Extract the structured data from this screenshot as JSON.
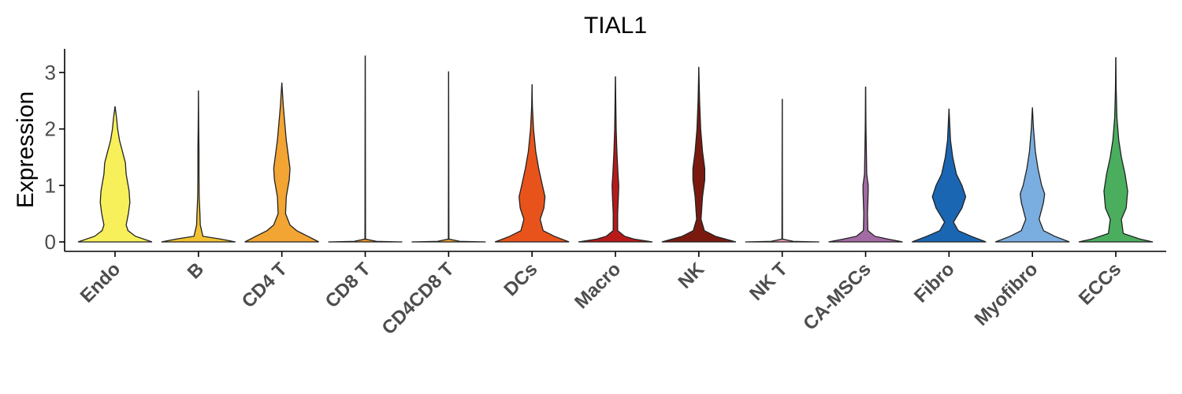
{
  "chart_data": {
    "type": "violin",
    "title": "TIAL1",
    "xlabel": "",
    "ylabel": "Expression",
    "ylim": [
      -0.15,
      3.45
    ],
    "yticks": [
      0,
      1,
      2,
      3
    ],
    "grid": false,
    "legend": "none",
    "categories": [
      "Endo",
      "B",
      "CD4 T",
      "CD8 T",
      "CD4CD8 T",
      "DCs",
      "Macro",
      "NK",
      "NK T",
      "CA-MSCs",
      "Fibro",
      "Myofibro",
      "ECCs"
    ],
    "colors": [
      "#f8f05b",
      "#f2c230",
      "#f2a533",
      "#f39c2d",
      "#f5a33a",
      "#e8531c",
      "#b81a1a",
      "#7a1a0f",
      "#f0a0b0",
      "#a36ba3",
      "#1a66b3",
      "#7aaee0",
      "#4aae5e"
    ],
    "max_values": [
      2.4,
      2.68,
      2.82,
      3.3,
      3.02,
      2.79,
      2.93,
      3.1,
      2.53,
      2.75,
      2.36,
      2.38,
      3.27
    ],
    "profiles": [
      [
        [
          0,
          1.0
        ],
        [
          0.1,
          0.55
        ],
        [
          0.2,
          0.35
        ],
        [
          0.3,
          0.3
        ],
        [
          0.5,
          0.36
        ],
        [
          0.7,
          0.4
        ],
        [
          0.9,
          0.38
        ],
        [
          1.2,
          0.3
        ],
        [
          1.4,
          0.28
        ],
        [
          1.6,
          0.2
        ],
        [
          1.8,
          0.12
        ],
        [
          2.0,
          0.07
        ],
        [
          2.2,
          0.04
        ],
        [
          2.4,
          0.0
        ]
      ],
      [
        [
          0,
          1.0
        ],
        [
          0.05,
          0.6
        ],
        [
          0.1,
          0.12
        ],
        [
          0.3,
          0.05
        ],
        [
          0.5,
          0.04
        ],
        [
          0.8,
          0.02
        ],
        [
          1.2,
          0.015
        ],
        [
          1.6,
          0.015
        ],
        [
          2.0,
          0.008
        ],
        [
          2.68,
          0.0
        ]
      ],
      [
        [
          0,
          1.0
        ],
        [
          0.1,
          0.7
        ],
        [
          0.2,
          0.4
        ],
        [
          0.3,
          0.22
        ],
        [
          0.5,
          0.1
        ],
        [
          0.8,
          0.12
        ],
        [
          1.1,
          0.2
        ],
        [
          1.3,
          0.22
        ],
        [
          1.5,
          0.18
        ],
        [
          1.8,
          0.12
        ],
        [
          2.1,
          0.08
        ],
        [
          2.4,
          0.04
        ],
        [
          2.82,
          0.0
        ]
      ],
      [
        [
          0,
          1.0
        ],
        [
          0.01,
          0.3
        ],
        [
          0.05,
          0.008
        ],
        [
          3.3,
          0.0
        ]
      ],
      [
        [
          0,
          1.0
        ],
        [
          0.01,
          0.3
        ],
        [
          0.05,
          0.008
        ],
        [
          3.02,
          0.0
        ]
      ],
      [
        [
          0,
          1.0
        ],
        [
          0.1,
          0.6
        ],
        [
          0.2,
          0.3
        ],
        [
          0.4,
          0.22
        ],
        [
          0.6,
          0.32
        ],
        [
          0.8,
          0.35
        ],
        [
          1.0,
          0.28
        ],
        [
          1.3,
          0.18
        ],
        [
          1.6,
          0.1
        ],
        [
          2.0,
          0.04
        ],
        [
          2.4,
          0.01
        ],
        [
          2.79,
          0.0
        ]
      ],
      [
        [
          0,
          1.0
        ],
        [
          0.05,
          0.5
        ],
        [
          0.1,
          0.25
        ],
        [
          0.2,
          0.06
        ],
        [
          0.5,
          0.06
        ],
        [
          0.8,
          0.08
        ],
        [
          1.0,
          0.09
        ],
        [
          1.2,
          0.07
        ],
        [
          1.6,
          0.04
        ],
        [
          2.0,
          0.02
        ],
        [
          2.93,
          0.0
        ]
      ],
      [
        [
          0,
          1.0
        ],
        [
          0.1,
          0.45
        ],
        [
          0.2,
          0.15
        ],
        [
          0.4,
          0.06
        ],
        [
          0.8,
          0.1
        ],
        [
          1.1,
          0.16
        ],
        [
          1.3,
          0.16
        ],
        [
          1.6,
          0.1
        ],
        [
          2.0,
          0.05
        ],
        [
          2.5,
          0.02
        ],
        [
          3.1,
          0.0
        ]
      ],
      [
        [
          0,
          1.0
        ],
        [
          0.01,
          0.3
        ],
        [
          0.05,
          0.008
        ],
        [
          2.53,
          0.0
        ]
      ],
      [
        [
          0,
          1.0
        ],
        [
          0.05,
          0.6
        ],
        [
          0.1,
          0.25
        ],
        [
          0.2,
          0.06
        ],
        [
          0.5,
          0.05
        ],
        [
          0.9,
          0.07
        ],
        [
          1.0,
          0.07
        ],
        [
          1.2,
          0.03
        ],
        [
          1.6,
          0.02
        ],
        [
          2.0,
          0.01
        ],
        [
          2.75,
          0.0
        ]
      ],
      [
        [
          0,
          1.0
        ],
        [
          0.1,
          0.6
        ],
        [
          0.2,
          0.25
        ],
        [
          0.35,
          0.12
        ],
        [
          0.6,
          0.35
        ],
        [
          0.8,
          0.45
        ],
        [
          1.0,
          0.35
        ],
        [
          1.2,
          0.2
        ],
        [
          1.5,
          0.1
        ],
        [
          1.8,
          0.04
        ],
        [
          2.36,
          0.0
        ]
      ],
      [
        [
          0,
          1.0
        ],
        [
          0.1,
          0.6
        ],
        [
          0.2,
          0.3
        ],
        [
          0.4,
          0.18
        ],
        [
          0.7,
          0.3
        ],
        [
          0.85,
          0.33
        ],
        [
          1.0,
          0.25
        ],
        [
          1.3,
          0.15
        ],
        [
          1.6,
          0.08
        ],
        [
          2.0,
          0.03
        ],
        [
          2.38,
          0.0
        ]
      ],
      [
        [
          0,
          1.0
        ],
        [
          0.05,
          0.65
        ],
        [
          0.15,
          0.2
        ],
        [
          0.4,
          0.15
        ],
        [
          0.6,
          0.28
        ],
        [
          0.9,
          0.32
        ],
        [
          1.2,
          0.25
        ],
        [
          1.5,
          0.15
        ],
        [
          1.8,
          0.08
        ],
        [
          2.2,
          0.03
        ],
        [
          2.7,
          0.01
        ],
        [
          3.27,
          0.0
        ]
      ]
    ]
  }
}
